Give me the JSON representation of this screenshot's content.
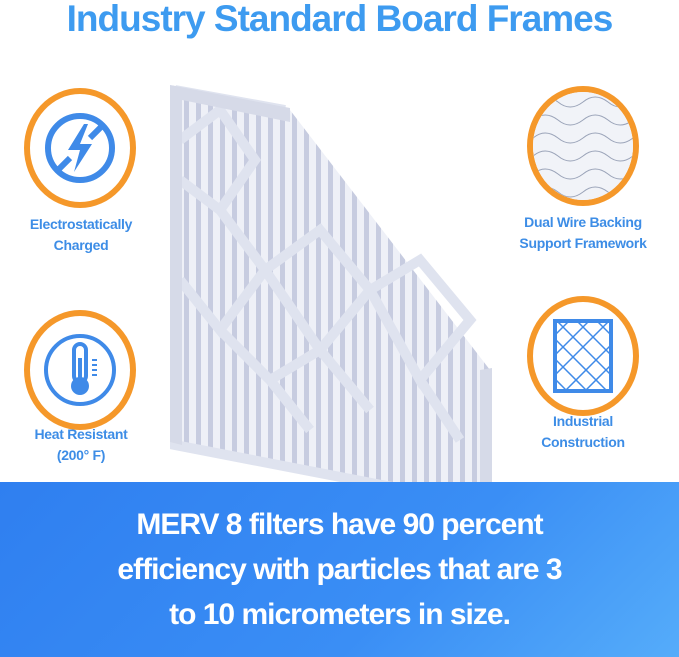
{
  "title": "Industry Standard Board Frames",
  "features": [
    {
      "icon": "no-static-lightning-icon",
      "label_lines": [
        "Electrostatically",
        "Charged"
      ]
    },
    {
      "icon": "thermometer-icon",
      "label_lines": [
        "Heat Resistant",
        "(200° F)"
      ]
    },
    {
      "icon": "wire-mesh-icon",
      "label_lines": [
        "Dual Wire Backing",
        "Support Framework"
      ]
    },
    {
      "icon": "grid-frame-icon",
      "label_lines": [
        "Industrial",
        "Construction"
      ]
    }
  ],
  "banner": {
    "lines": [
      "MERV 8 filters have 90 percent",
      "efficiency with particles that are 3",
      "to 10 micrometers in size."
    ]
  },
  "colors": {
    "accent_blue": "#3d9bf0",
    "ring_orange": "#f5982a",
    "banner_blue": "#2f7ff0"
  }
}
